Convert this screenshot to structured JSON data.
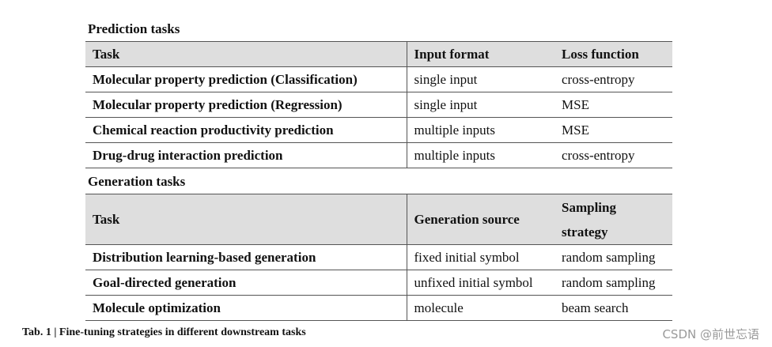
{
  "prediction": {
    "title": "Prediction tasks",
    "headers": [
      "Task",
      "Input format",
      "Loss function"
    ],
    "rows": [
      [
        "Molecular property prediction (Classification)",
        "single input",
        "cross-entropy"
      ],
      [
        "Molecular property prediction (Regression)",
        "single input",
        "MSE"
      ],
      [
        "Chemical reaction productivity prediction",
        "multiple inputs",
        "MSE"
      ],
      [
        "Drug-drug interaction prediction",
        "multiple inputs",
        "cross-entropy"
      ]
    ]
  },
  "generation": {
    "title": "Generation tasks",
    "headers": [
      "Task",
      "Generation source",
      "Sampling strategy"
    ],
    "header_lines": [
      "Sampling",
      "strategy"
    ],
    "rows": [
      [
        "Distribution learning-based generation",
        "fixed initial symbol",
        "random sampling"
      ],
      [
        "Goal-directed generation",
        "unfixed initial symbol",
        "random sampling"
      ],
      [
        "Molecule optimization",
        "molecule",
        "beam search"
      ]
    ]
  },
  "caption": "Tab. 1 | Fine-tuning strategies in different downstream tasks",
  "watermark": "CSDN @前世忘语"
}
